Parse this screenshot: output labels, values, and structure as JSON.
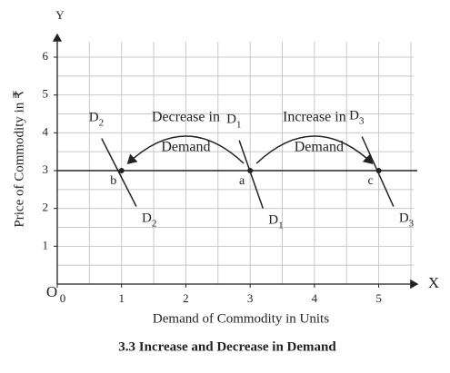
{
  "chart_data": {
    "type": "line",
    "title": "3.3 Increase and Decrease in Demand",
    "xlabel": "Demand of Commodity in Units",
    "ylabel": "Price of Commodity in ₹",
    "x_axis_letter": "X",
    "y_axis_letter": "Y",
    "origin_label": "O",
    "xlim": [
      0,
      5.6
    ],
    "ylim": [
      0,
      6.6
    ],
    "xticks": [
      0,
      1,
      2,
      3,
      4,
      5
    ],
    "yticks": [
      1,
      2,
      3,
      4,
      5,
      6
    ],
    "grid": true,
    "color": "#222",
    "series": [
      {
        "x": [
          0,
          5.6
        ],
        "values": [
          3,
          3
        ]
      },
      {
        "x": [
          2.83,
          3.2
        ],
        "values": [
          3.8,
          2.0
        ],
        "label_top": {
          "text": "D",
          "sub": "1"
        },
        "label_bottom": {
          "text": "D",
          "sub": "1"
        }
      },
      {
        "x": [
          0.69,
          1.23
        ],
        "values": [
          3.85,
          2.05
        ],
        "label_top": {
          "text": "D",
          "sub": "2"
        },
        "label_bottom": {
          "text": "D",
          "sub": "2"
        }
      },
      {
        "x": [
          4.74,
          5.23
        ],
        "values": [
          3.9,
          2.05
        ],
        "label_top": {
          "text": "D",
          "sub": "3"
        },
        "label_bottom": {
          "text": "D",
          "sub": "3"
        }
      }
    ],
    "points": [
      {
        "label": "b",
        "x": 1,
        "y": 3
      },
      {
        "label": "a",
        "x": 3,
        "y": 3
      },
      {
        "label": "c",
        "x": 5,
        "y": 3
      }
    ],
    "annotations": [
      {
        "lines": [
          "Decrease in",
          "Demand"
        ],
        "from_x": 2.9,
        "to_x": 1.1
      },
      {
        "lines": [
          "Increase in",
          "Demand"
        ],
        "from_x": 3.1,
        "to_x": 4.9
      }
    ]
  }
}
